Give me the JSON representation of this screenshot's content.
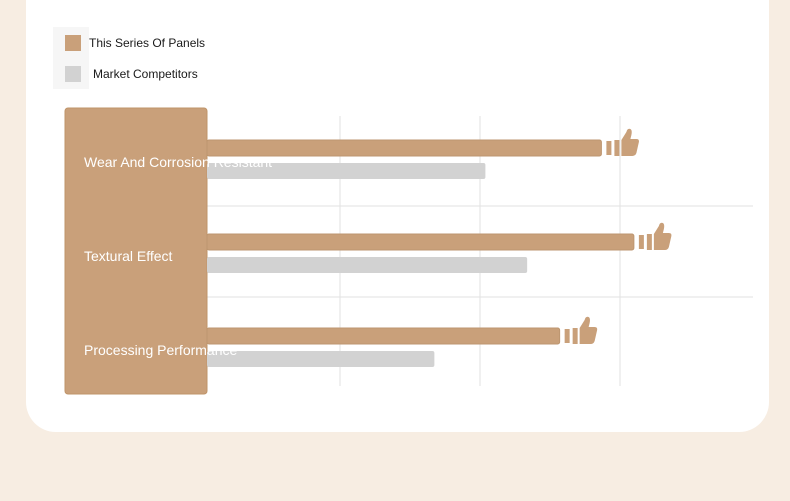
{
  "legend": {
    "items": [
      {
        "label": "This Series Of Panels",
        "color": "#c9a07a"
      },
      {
        "label": "Market Competitors",
        "color": "#d2d2d2"
      }
    ]
  },
  "chart_data": {
    "type": "bar",
    "orientation": "horizontal",
    "categories": [
      "Wear And Corrosion Resistant",
      "Textural Effect",
      "Processing Performance"
    ],
    "series": [
      {
        "name": "This Series Of Panels",
        "values": [
          85,
          92,
          76
        ],
        "color": "#c9a07a"
      },
      {
        "name": "Market Competitors",
        "values": [
          60,
          69,
          49
        ],
        "color": "#d2d2d2"
      }
    ],
    "xlim": [
      0,
      100
    ],
    "grid": true,
    "legend_position": "top-left",
    "marker_icon": "thumbs-up-icon"
  }
}
